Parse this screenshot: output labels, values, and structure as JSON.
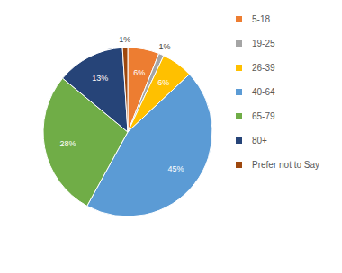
{
  "chart_data": {
    "type": "pie",
    "categories": [
      "5-18",
      "19-25",
      "26-39",
      "40-64",
      "65-79",
      "80+",
      "Prefer not to Say"
    ],
    "values": [
      6,
      1,
      6,
      45,
      28,
      13,
      1
    ],
    "value_labels": [
      "6%",
      "1%",
      "6%",
      "45%",
      "28%",
      "13%",
      "1%"
    ],
    "colors": [
      "#ed7d31",
      "#a5a5a5",
      "#ffc000",
      "#5b9bd5",
      "#70ad47",
      "#264478",
      "#9e480e"
    ],
    "data_labels": true,
    "legend": "right"
  }
}
